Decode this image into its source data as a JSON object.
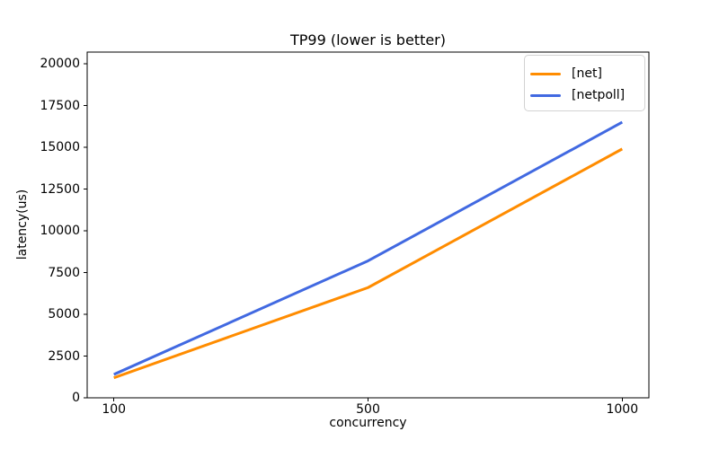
{
  "chart_data": {
    "type": "line",
    "title": "TP99 (lower is better)",
    "xlabel": "concurrency",
    "ylabel": "latency(us)",
    "x_axis_type": "categorical",
    "categories": [
      "100",
      "500",
      "1000"
    ],
    "series": [
      {
        "name": "[net]",
        "color": "#ff8c00",
        "values": [
          1200,
          6600,
          14900
        ]
      },
      {
        "name": "[netpoll]",
        "color": "#4169e1",
        "values": [
          1400,
          8200,
          16500
        ]
      }
    ],
    "yticks": [
      0,
      2500,
      5000,
      7500,
      10000,
      12500,
      15000,
      17500,
      20000
    ],
    "ylim": [
      0,
      20700
    ],
    "grid": false,
    "legend_position": "upper right",
    "spine_color": "#000000",
    "text_color": "#000000"
  }
}
